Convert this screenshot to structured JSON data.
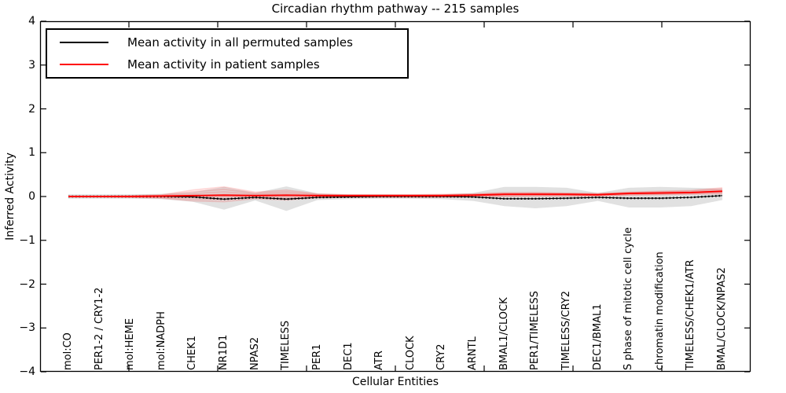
{
  "figure": {
    "title": "Circadian rhythm pathway -- 215 samples",
    "xlabel": "Cellular Entities",
    "ylabel": "Inferred Activity"
  },
  "legend": {
    "entries": [
      {
        "label": "Mean activity in all permuted samples",
        "color": "#000000"
      },
      {
        "label": "Mean activity in patient samples",
        "color": "#ff0000"
      }
    ]
  },
  "axes": {
    "yticks": [
      "4",
      "3",
      "2",
      "1",
      "0",
      "−1",
      "−2",
      "−3",
      "−4"
    ],
    "ytick_values": [
      4,
      3,
      2,
      1,
      0,
      -1,
      -2,
      -3,
      -4
    ],
    "x_interior_tick_count": 7
  },
  "colors": {
    "permuted_mean": "#000000",
    "patient_mean": "#ff0000",
    "permuted_band": "#e1e1e1",
    "spine": "#000000"
  },
  "chart_data": {
    "type": "line",
    "title": "Circadian rhythm pathway -- 215 samples",
    "xlabel": "Cellular Entities",
    "ylabel": "Inferred Activity",
    "ylim": [
      -4,
      4
    ],
    "grid": false,
    "legend_position": "upper left",
    "categories": [
      "mol:CO",
      "PER1-2 / CRY1-2",
      "mol:HEME",
      "mol:NADPH",
      "CHEK1",
      "NR1D1",
      "NPAS2",
      "TIMELESS",
      "PER1",
      "DEC1",
      "ATR",
      "CLOCK",
      "CRY2",
      "ARNTL",
      "BMAL1/CLOCK",
      "PER1/TIMELESS",
      "TIMELESS/CRY2",
      "DEC1/BMAL1",
      "S phase of mitotic cell cycle",
      "chromatin modification",
      "TIMELESS/CHEK1/ATR",
      "BMAL/CLOCK/NPAS2"
    ],
    "series": [
      {
        "name": "Mean activity in all permuted samples",
        "color": "#000000",
        "values": [
          0,
          0,
          0,
          0,
          -0.01,
          -0.06,
          -0.02,
          -0.06,
          -0.02,
          -0.01,
          0,
          0,
          0,
          -0.01,
          -0.05,
          -0.05,
          -0.04,
          -0.02,
          -0.04,
          -0.04,
          -0.02,
          0.02
        ]
      },
      {
        "name": "Mean activity in patient samples",
        "color": "#ff0000",
        "values": [
          0,
          0,
          0,
          0.01,
          0.02,
          0.03,
          0.02,
          0.03,
          0.02,
          0.02,
          0.02,
          0.02,
          0.02,
          0.03,
          0.05,
          0.05,
          0.05,
          0.04,
          0.07,
          0.08,
          0.09,
          0.12
        ]
      }
    ],
    "permuted_band": {
      "upper": [
        0.05,
        0.05,
        0.05,
        0.06,
        0.1,
        0.22,
        0.08,
        0.23,
        0.07,
        0.05,
        0.05,
        0.05,
        0.05,
        0.08,
        0.22,
        0.22,
        0.2,
        0.08,
        0.2,
        0.22,
        0.2,
        0.18
      ],
      "lower": [
        -0.05,
        -0.05,
        -0.05,
        -0.06,
        -0.12,
        -0.3,
        -0.09,
        -0.33,
        -0.08,
        -0.06,
        -0.05,
        -0.05,
        -0.06,
        -0.1,
        -0.22,
        -0.27,
        -0.22,
        -0.1,
        -0.25,
        -0.25,
        -0.22,
        -0.08
      ]
    },
    "patient_traces_band": {
      "upper": [
        0.01,
        0.01,
        0.02,
        0.04,
        0.15,
        0.22,
        0.1,
        0.15,
        0.06,
        0.04,
        0.04,
        0.04,
        0.05,
        0.06,
        0.09,
        0.09,
        0.08,
        0.07,
        0.1,
        0.12,
        0.14,
        0.2
      ],
      "lower": [
        -0.01,
        -0.01,
        -0.02,
        -0.04,
        -0.1,
        -0.12,
        -0.05,
        -0.08,
        -0.03,
        -0.02,
        -0.02,
        -0.02,
        -0.02,
        0.0,
        0.0,
        0.01,
        0.01,
        0.01,
        0.03,
        0.04,
        0.05,
        0.06
      ]
    }
  }
}
